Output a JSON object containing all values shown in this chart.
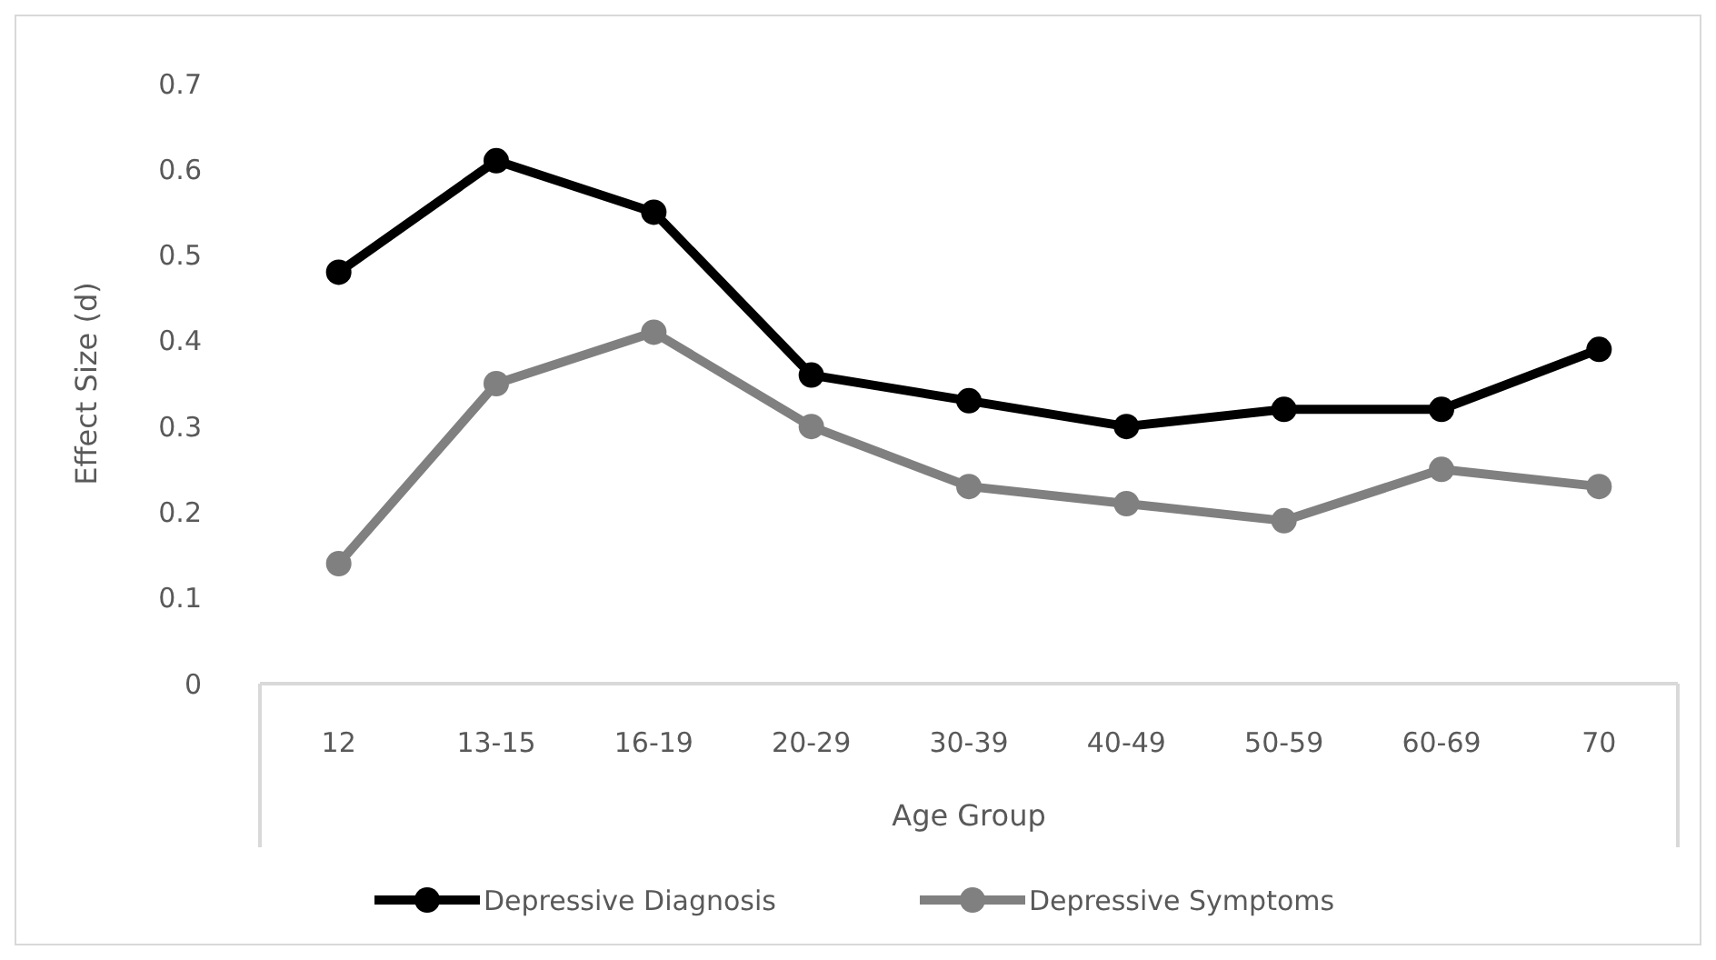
{
  "chart_data": {
    "type": "line",
    "xlabel": "Age Group",
    "ylabel": "Effect Size (d)",
    "categories": [
      "12",
      "13-15",
      "16-19",
      "20-29",
      "30-39",
      "40-49",
      "50-59",
      "60-69",
      "70"
    ],
    "series": [
      {
        "name": "Depressive Diagnosis",
        "color": "#000000",
        "values": [
          0.48,
          0.61,
          0.55,
          0.36,
          0.33,
          0.3,
          0.32,
          0.32,
          0.39
        ]
      },
      {
        "name": "Depressive Symptoms",
        "color": "#808080",
        "values": [
          0.14,
          0.35,
          0.41,
          0.3,
          0.23,
          0.21,
          0.19,
          0.25,
          0.23
        ]
      }
    ],
    "ylim": [
      0,
      0.7
    ],
    "yticks": [
      0,
      0.1,
      0.2,
      0.3,
      0.4,
      0.5,
      0.6,
      0.7
    ],
    "grid": false,
    "legend": "bottom",
    "marker": "circle",
    "line_style": "solid"
  }
}
